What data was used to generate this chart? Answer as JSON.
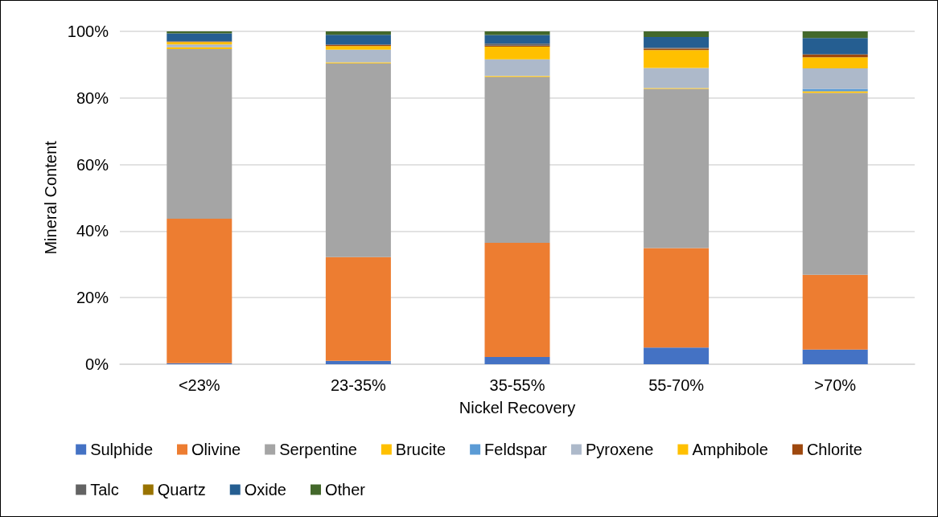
{
  "chart_data": {
    "type": "bar",
    "stacked": true,
    "xlabel": "Nickel Recovery",
    "ylabel": "Mineral Content",
    "categories": [
      "<23%",
      "23-35%",
      "35-55%",
      "55-70%",
      ">70%"
    ],
    "series": [
      {
        "name": "Sulphide",
        "color": "#4472c4",
        "values": [
          0.3,
          1.0,
          2.2,
          5.0,
          4.4
        ]
      },
      {
        "name": "Olivine",
        "color": "#ed7d31",
        "values": [
          43.4,
          31.2,
          34.3,
          29.9,
          22.5
        ]
      },
      {
        "name": "Serpentine",
        "color": "#a5a5a5",
        "values": [
          51.0,
          58.2,
          49.8,
          47.8,
          54.6
        ]
      },
      {
        "name": "Brucite",
        "color": "#ffc000",
        "values": [
          0.5,
          0.3,
          0.3,
          0.3,
          0.5
        ]
      },
      {
        "name": "Feldspar",
        "color": "#5b9bd5",
        "values": [
          0,
          0,
          0,
          0,
          0.7
        ]
      },
      {
        "name": "Pyroxene",
        "color": "#adb9ca",
        "values": [
          0.9,
          3.8,
          5.0,
          6.0,
          6.2
        ]
      },
      {
        "name": "Amphibole",
        "color": "#ffc000",
        "values": [
          0.7,
          1.1,
          3.8,
          5.4,
          3.3
        ]
      },
      {
        "name": "Chlorite",
        "color": "#9e480e",
        "values": [
          0.2,
          0.4,
          0.3,
          0.4,
          0.8
        ]
      },
      {
        "name": "Talc",
        "color": "#636363",
        "values": [
          0,
          0,
          0.6,
          0.3,
          0.2
        ]
      },
      {
        "name": "Quartz",
        "color": "#997300",
        "values": [
          0,
          0,
          0,
          0,
          0
        ]
      },
      {
        "name": "Oxide",
        "color": "#255e91",
        "values": [
          2.4,
          3.0,
          2.6,
          3.2,
          4.8
        ]
      },
      {
        "name": "Other",
        "color": "#43682b",
        "values": [
          0.7,
          1.1,
          1.2,
          1.8,
          2.0
        ]
      }
    ],
    "ylim": [
      0,
      100
    ],
    "yticks": [
      {
        "value": 0,
        "label": "0%"
      },
      {
        "value": 20,
        "label": "20%"
      },
      {
        "value": 40,
        "label": "40%"
      },
      {
        "value": 60,
        "label": "60%"
      },
      {
        "value": 80,
        "label": "80%"
      },
      {
        "value": 100,
        "label": "100%"
      }
    ],
    "grid": "y",
    "legend": "bottom"
  }
}
